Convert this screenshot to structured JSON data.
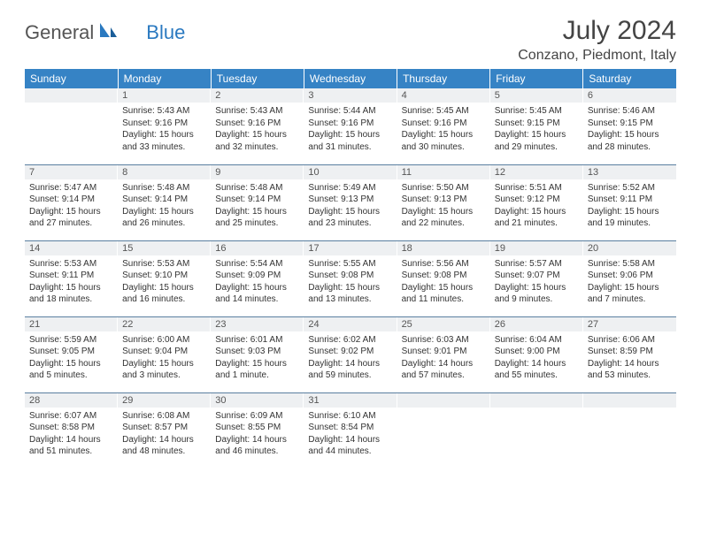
{
  "logo": {
    "text1": "General",
    "text2": "Blue"
  },
  "title": "July 2024",
  "location": "Conzano, Piedmont, Italy",
  "colors": {
    "header_bg": "#3683c5",
    "header_text": "#ffffff",
    "daynum_bg": "#eef0f2",
    "row_border": "#5a7fa0",
    "logo_gray": "#555555",
    "logo_blue": "#2a79c0"
  },
  "weekdays": [
    "Sunday",
    "Monday",
    "Tuesday",
    "Wednesday",
    "Thursday",
    "Friday",
    "Saturday"
  ],
  "weeks": [
    [
      {
        "n": "",
        "sr": "",
        "ss": "",
        "dl": ""
      },
      {
        "n": "1",
        "sr": "Sunrise: 5:43 AM",
        "ss": "Sunset: 9:16 PM",
        "dl": "Daylight: 15 hours and 33 minutes."
      },
      {
        "n": "2",
        "sr": "Sunrise: 5:43 AM",
        "ss": "Sunset: 9:16 PM",
        "dl": "Daylight: 15 hours and 32 minutes."
      },
      {
        "n": "3",
        "sr": "Sunrise: 5:44 AM",
        "ss": "Sunset: 9:16 PM",
        "dl": "Daylight: 15 hours and 31 minutes."
      },
      {
        "n": "4",
        "sr": "Sunrise: 5:45 AM",
        "ss": "Sunset: 9:16 PM",
        "dl": "Daylight: 15 hours and 30 minutes."
      },
      {
        "n": "5",
        "sr": "Sunrise: 5:45 AM",
        "ss": "Sunset: 9:15 PM",
        "dl": "Daylight: 15 hours and 29 minutes."
      },
      {
        "n": "6",
        "sr": "Sunrise: 5:46 AM",
        "ss": "Sunset: 9:15 PM",
        "dl": "Daylight: 15 hours and 28 minutes."
      }
    ],
    [
      {
        "n": "7",
        "sr": "Sunrise: 5:47 AM",
        "ss": "Sunset: 9:14 PM",
        "dl": "Daylight: 15 hours and 27 minutes."
      },
      {
        "n": "8",
        "sr": "Sunrise: 5:48 AM",
        "ss": "Sunset: 9:14 PM",
        "dl": "Daylight: 15 hours and 26 minutes."
      },
      {
        "n": "9",
        "sr": "Sunrise: 5:48 AM",
        "ss": "Sunset: 9:14 PM",
        "dl": "Daylight: 15 hours and 25 minutes."
      },
      {
        "n": "10",
        "sr": "Sunrise: 5:49 AM",
        "ss": "Sunset: 9:13 PM",
        "dl": "Daylight: 15 hours and 23 minutes."
      },
      {
        "n": "11",
        "sr": "Sunrise: 5:50 AM",
        "ss": "Sunset: 9:13 PM",
        "dl": "Daylight: 15 hours and 22 minutes."
      },
      {
        "n": "12",
        "sr": "Sunrise: 5:51 AM",
        "ss": "Sunset: 9:12 PM",
        "dl": "Daylight: 15 hours and 21 minutes."
      },
      {
        "n": "13",
        "sr": "Sunrise: 5:52 AM",
        "ss": "Sunset: 9:11 PM",
        "dl": "Daylight: 15 hours and 19 minutes."
      }
    ],
    [
      {
        "n": "14",
        "sr": "Sunrise: 5:53 AM",
        "ss": "Sunset: 9:11 PM",
        "dl": "Daylight: 15 hours and 18 minutes."
      },
      {
        "n": "15",
        "sr": "Sunrise: 5:53 AM",
        "ss": "Sunset: 9:10 PM",
        "dl": "Daylight: 15 hours and 16 minutes."
      },
      {
        "n": "16",
        "sr": "Sunrise: 5:54 AM",
        "ss": "Sunset: 9:09 PM",
        "dl": "Daylight: 15 hours and 14 minutes."
      },
      {
        "n": "17",
        "sr": "Sunrise: 5:55 AM",
        "ss": "Sunset: 9:08 PM",
        "dl": "Daylight: 15 hours and 13 minutes."
      },
      {
        "n": "18",
        "sr": "Sunrise: 5:56 AM",
        "ss": "Sunset: 9:08 PM",
        "dl": "Daylight: 15 hours and 11 minutes."
      },
      {
        "n": "19",
        "sr": "Sunrise: 5:57 AM",
        "ss": "Sunset: 9:07 PM",
        "dl": "Daylight: 15 hours and 9 minutes."
      },
      {
        "n": "20",
        "sr": "Sunrise: 5:58 AM",
        "ss": "Sunset: 9:06 PM",
        "dl": "Daylight: 15 hours and 7 minutes."
      }
    ],
    [
      {
        "n": "21",
        "sr": "Sunrise: 5:59 AM",
        "ss": "Sunset: 9:05 PM",
        "dl": "Daylight: 15 hours and 5 minutes."
      },
      {
        "n": "22",
        "sr": "Sunrise: 6:00 AM",
        "ss": "Sunset: 9:04 PM",
        "dl": "Daylight: 15 hours and 3 minutes."
      },
      {
        "n": "23",
        "sr": "Sunrise: 6:01 AM",
        "ss": "Sunset: 9:03 PM",
        "dl": "Daylight: 15 hours and 1 minute."
      },
      {
        "n": "24",
        "sr": "Sunrise: 6:02 AM",
        "ss": "Sunset: 9:02 PM",
        "dl": "Daylight: 14 hours and 59 minutes."
      },
      {
        "n": "25",
        "sr": "Sunrise: 6:03 AM",
        "ss": "Sunset: 9:01 PM",
        "dl": "Daylight: 14 hours and 57 minutes."
      },
      {
        "n": "26",
        "sr": "Sunrise: 6:04 AM",
        "ss": "Sunset: 9:00 PM",
        "dl": "Daylight: 14 hours and 55 minutes."
      },
      {
        "n": "27",
        "sr": "Sunrise: 6:06 AM",
        "ss": "Sunset: 8:59 PM",
        "dl": "Daylight: 14 hours and 53 minutes."
      }
    ],
    [
      {
        "n": "28",
        "sr": "Sunrise: 6:07 AM",
        "ss": "Sunset: 8:58 PM",
        "dl": "Daylight: 14 hours and 51 minutes."
      },
      {
        "n": "29",
        "sr": "Sunrise: 6:08 AM",
        "ss": "Sunset: 8:57 PM",
        "dl": "Daylight: 14 hours and 48 minutes."
      },
      {
        "n": "30",
        "sr": "Sunrise: 6:09 AM",
        "ss": "Sunset: 8:55 PM",
        "dl": "Daylight: 14 hours and 46 minutes."
      },
      {
        "n": "31",
        "sr": "Sunrise: 6:10 AM",
        "ss": "Sunset: 8:54 PM",
        "dl": "Daylight: 14 hours and 44 minutes."
      },
      {
        "n": "",
        "sr": "",
        "ss": "",
        "dl": ""
      },
      {
        "n": "",
        "sr": "",
        "ss": "",
        "dl": ""
      },
      {
        "n": "",
        "sr": "",
        "ss": "",
        "dl": ""
      }
    ]
  ]
}
